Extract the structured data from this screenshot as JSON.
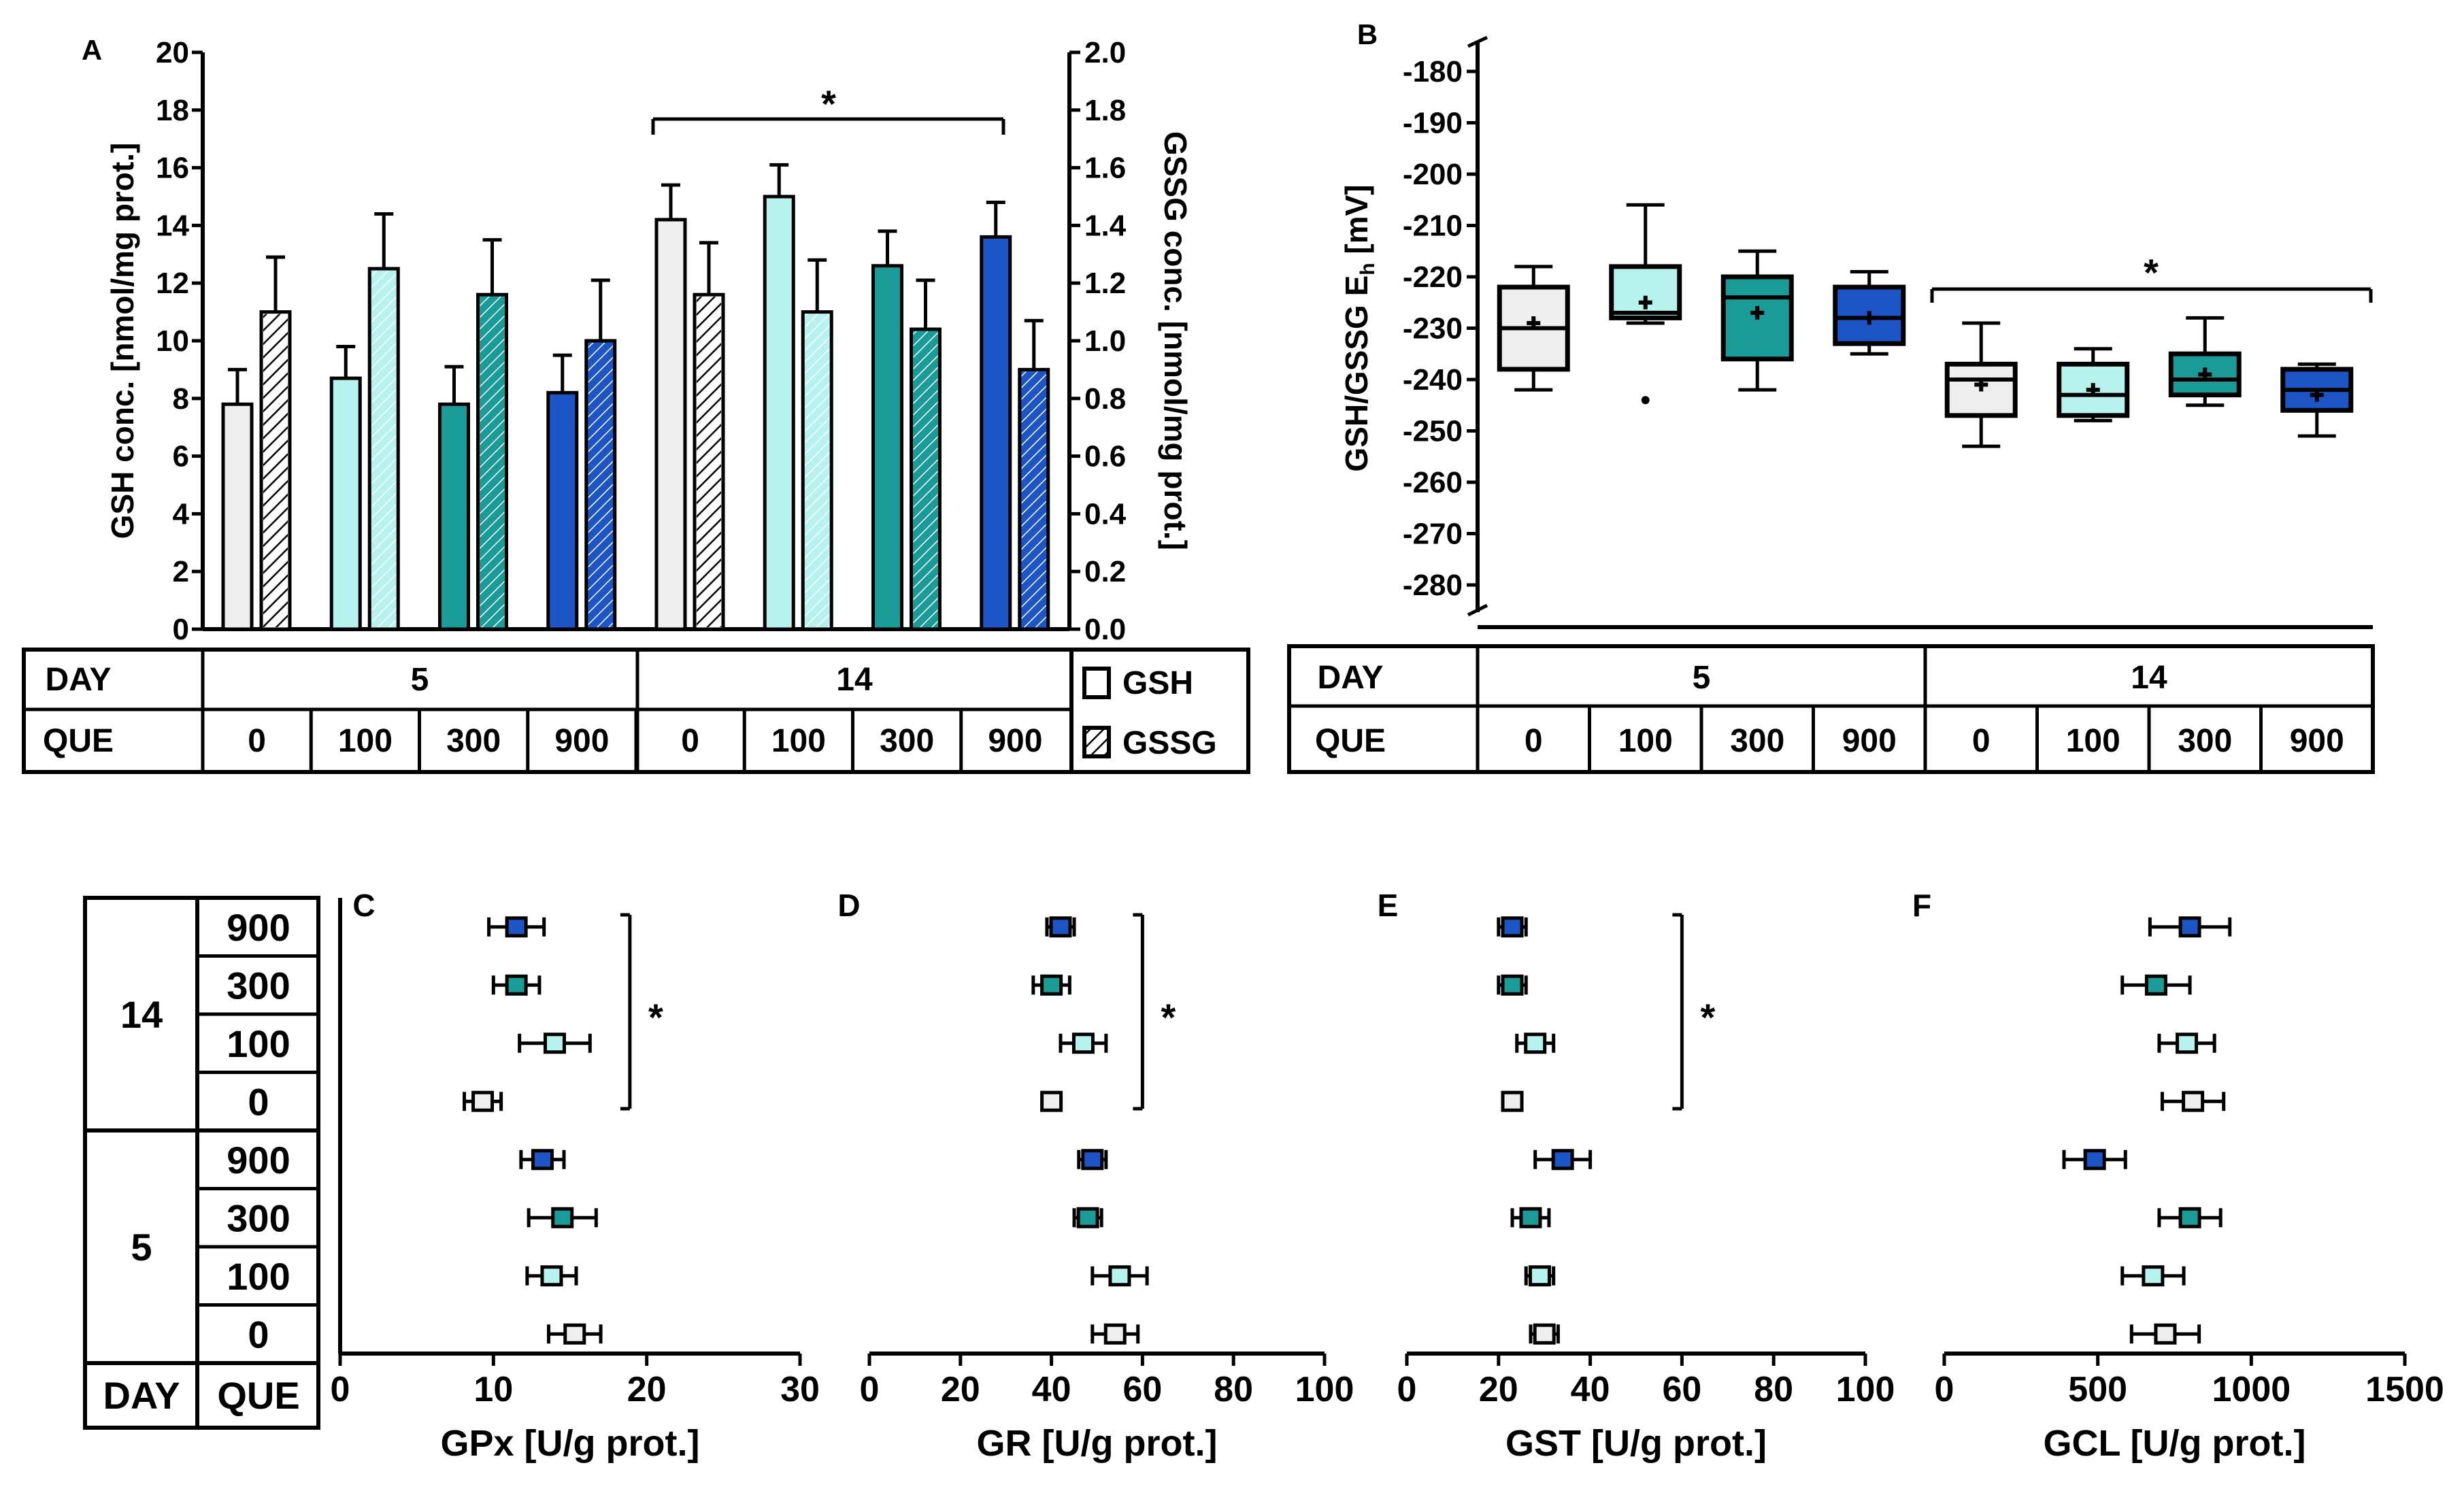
{
  "colors": {
    "que0": "#eeeeee",
    "que100": "#b7f2ee",
    "que300": "#1b9b98",
    "que900": "#1d55c7",
    "ink": "#000000"
  },
  "table": {
    "day_label": "DAY",
    "que_label": "QUE",
    "days": [
      "5",
      "14"
    ],
    "que": [
      "0",
      "100",
      "300",
      "900"
    ],
    "legend": [
      "GSH",
      "GSSG"
    ]
  },
  "chart_data": [
    {
      "id": "A",
      "type": "bar",
      "panel_label": "A",
      "ylabel": "GSH conc. [nmol/mg prot.]",
      "y2label": "GSSG conc. [nmol/mg prot.]",
      "ylim": [
        0,
        20
      ],
      "y2lim": [
        0,
        2.0
      ],
      "yticks": [
        "0",
        "2",
        "4",
        "6",
        "8",
        "10",
        "12",
        "14",
        "16",
        "18",
        "20"
      ],
      "y2ticks": [
        "0.0",
        "0.2",
        "0.4",
        "0.6",
        "0.8",
        "1.0",
        "1.2",
        "1.4",
        "1.6",
        "1.8",
        "2.0"
      ],
      "categories": [
        "Day 5 / QUE 0",
        "Day 5 / QUE 100",
        "Day 5 / QUE 300",
        "Day 5 / QUE 900",
        "Day 14 / QUE 0",
        "Day 14 / QUE 100",
        "Day 14 / QUE 300",
        "Day 14 / QUE 900"
      ],
      "series": [
        {
          "name": "GSH",
          "axis": "left",
          "values": [
            7.8,
            8.7,
            7.8,
            8.2,
            14.2,
            15.0,
            12.6,
            13.6
          ],
          "err": [
            1.2,
            1.1,
            1.3,
            1.3,
            1.2,
            1.1,
            1.2,
            1.2
          ]
        },
        {
          "name": "GSSG",
          "axis": "right",
          "values": [
            1.1,
            1.25,
            1.16,
            1.0,
            1.16,
            1.1,
            1.04,
            0.9
          ],
          "err": [
            0.19,
            0.19,
            0.19,
            0.21,
            0.18,
            0.18,
            0.17,
            0.17
          ]
        }
      ],
      "annotation": "*"
    },
    {
      "id": "B",
      "type": "box",
      "panel_label": "B",
      "ylabel": "GSH/GSSG E",
      "ylabel_sub": "h",
      "ylabel_unit": " [mV]",
      "ylim": [
        -280,
        -180
      ],
      "yticks": [
        "-280",
        "-270",
        "-260",
        "-250",
        "-240",
        "-230",
        "-220",
        "-210",
        "-200",
        "-190",
        "-180"
      ],
      "categories": [
        "Day 5 / QUE 0",
        "Day 5 / QUE 100",
        "Day 5 / QUE 300",
        "Day 5 / QUE 900",
        "Day 14 / QUE 0",
        "Day 14 / QUE 100",
        "Day 14 / QUE 300",
        "Day 14 / QUE 900"
      ],
      "boxes": [
        {
          "min": -242,
          "q1": -238,
          "median": -230,
          "q3": -222,
          "max": -218,
          "mean": -229
        },
        {
          "min": -229,
          "q1": -228,
          "median": -227,
          "q3": -218,
          "max": -206,
          "mean": -225,
          "outlier": -244
        },
        {
          "min": -242,
          "q1": -236,
          "median": -224,
          "q3": -220,
          "max": -215,
          "mean": -227
        },
        {
          "min": -235,
          "q1": -233,
          "median": -228,
          "q3": -222,
          "max": -219,
          "mean": -228
        },
        {
          "min": -253,
          "q1": -247,
          "median": -240,
          "q3": -237,
          "max": -229,
          "mean": -241
        },
        {
          "min": -248,
          "q1": -247,
          "median": -243,
          "q3": -237,
          "max": -234,
          "mean": -242
        },
        {
          "min": -245,
          "q1": -243,
          "median": -240,
          "q3": -235,
          "max": -228,
          "mean": -239
        },
        {
          "min": -251,
          "q1": -246,
          "median": -242,
          "q3": -238,
          "max": -237,
          "mean": -243
        }
      ],
      "annotation": "*"
    },
    {
      "id": "C",
      "type": "scatter",
      "panel_label": "C",
      "xlabel": "GPx [U/g prot.]",
      "xlim": [
        0,
        30
      ],
      "xticks": [
        "0",
        "10",
        "20",
        "30"
      ],
      "rows": [
        "Day 14 / QUE 900",
        "Day 14 / QUE 300",
        "Day 14 / QUE 100",
        "Day 14 / QUE 0",
        "Day 5 / QUE 900",
        "Day 5 / QUE 300",
        "Day 5 / QUE 100",
        "Day 5 / QUE 0"
      ],
      "values": [
        11.5,
        11.5,
        14.0,
        9.3,
        13.2,
        14.5,
        13.8,
        15.3
      ],
      "err": [
        1.8,
        1.5,
        2.3,
        1.2,
        1.4,
        2.2,
        1.6,
        1.7
      ],
      "annotation": "*"
    },
    {
      "id": "D",
      "type": "scatter",
      "panel_label": "D",
      "xlabel": "GR [U/g prot.]",
      "xlim": [
        0,
        100
      ],
      "xticks": [
        "0",
        "20",
        "40",
        "60",
        "80",
        "100"
      ],
      "rows": [
        "Day 14 / QUE 900",
        "Day 14 / QUE 300",
        "Day 14 / QUE 100",
        "Day 14 / QUE 0",
        "Day 5 / QUE 900",
        "Day 5 / QUE 300",
        "Day 5 / QUE 100",
        "Day 5 / QUE 0"
      ],
      "values": [
        42,
        40,
        47,
        40,
        49,
        48,
        55,
        54
      ],
      "err": [
        3,
        4,
        5,
        2,
        3,
        3,
        6,
        5
      ],
      "annotation": "*"
    },
    {
      "id": "E",
      "type": "scatter",
      "panel_label": "E",
      "xlabel": "GST [U/g prot.]",
      "xlim": [
        0,
        100
      ],
      "xticks": [
        "0",
        "20",
        "40",
        "60",
        "80",
        "100"
      ],
      "rows": [
        "Day 14 / QUE 900",
        "Day 14 / QUE 300",
        "Day 14 / QUE 100",
        "Day 14 / QUE 0",
        "Day 5 / QUE 900",
        "Day 5 / QUE 300",
        "Day 5 / QUE 100",
        "Day 5 / QUE 0"
      ],
      "values": [
        23,
        23,
        28,
        23,
        34,
        27,
        29,
        30
      ],
      "err": [
        3,
        3,
        4,
        2,
        6,
        4,
        3,
        3
      ],
      "annotation": "*"
    },
    {
      "id": "F",
      "type": "scatter",
      "panel_label": "F",
      "xlabel": "GCL [U/g prot.]",
      "xlim": [
        0,
        1500
      ],
      "xticks": [
        "0",
        "500",
        "1000",
        "1500"
      ],
      "rows": [
        "Day 14 / QUE 900",
        "Day 14 / QUE 300",
        "Day 14 / QUE 100",
        "Day 14 / QUE 0",
        "Day 5 / QUE 900",
        "Day 5 / QUE 300",
        "Day 5 / QUE 100",
        "Day 5 / QUE 0"
      ],
      "values": [
        800,
        690,
        790,
        810,
        490,
        800,
        680,
        720
      ],
      "err": [
        130,
        110,
        90,
        100,
        100,
        100,
        100,
        110
      ]
    }
  ]
}
